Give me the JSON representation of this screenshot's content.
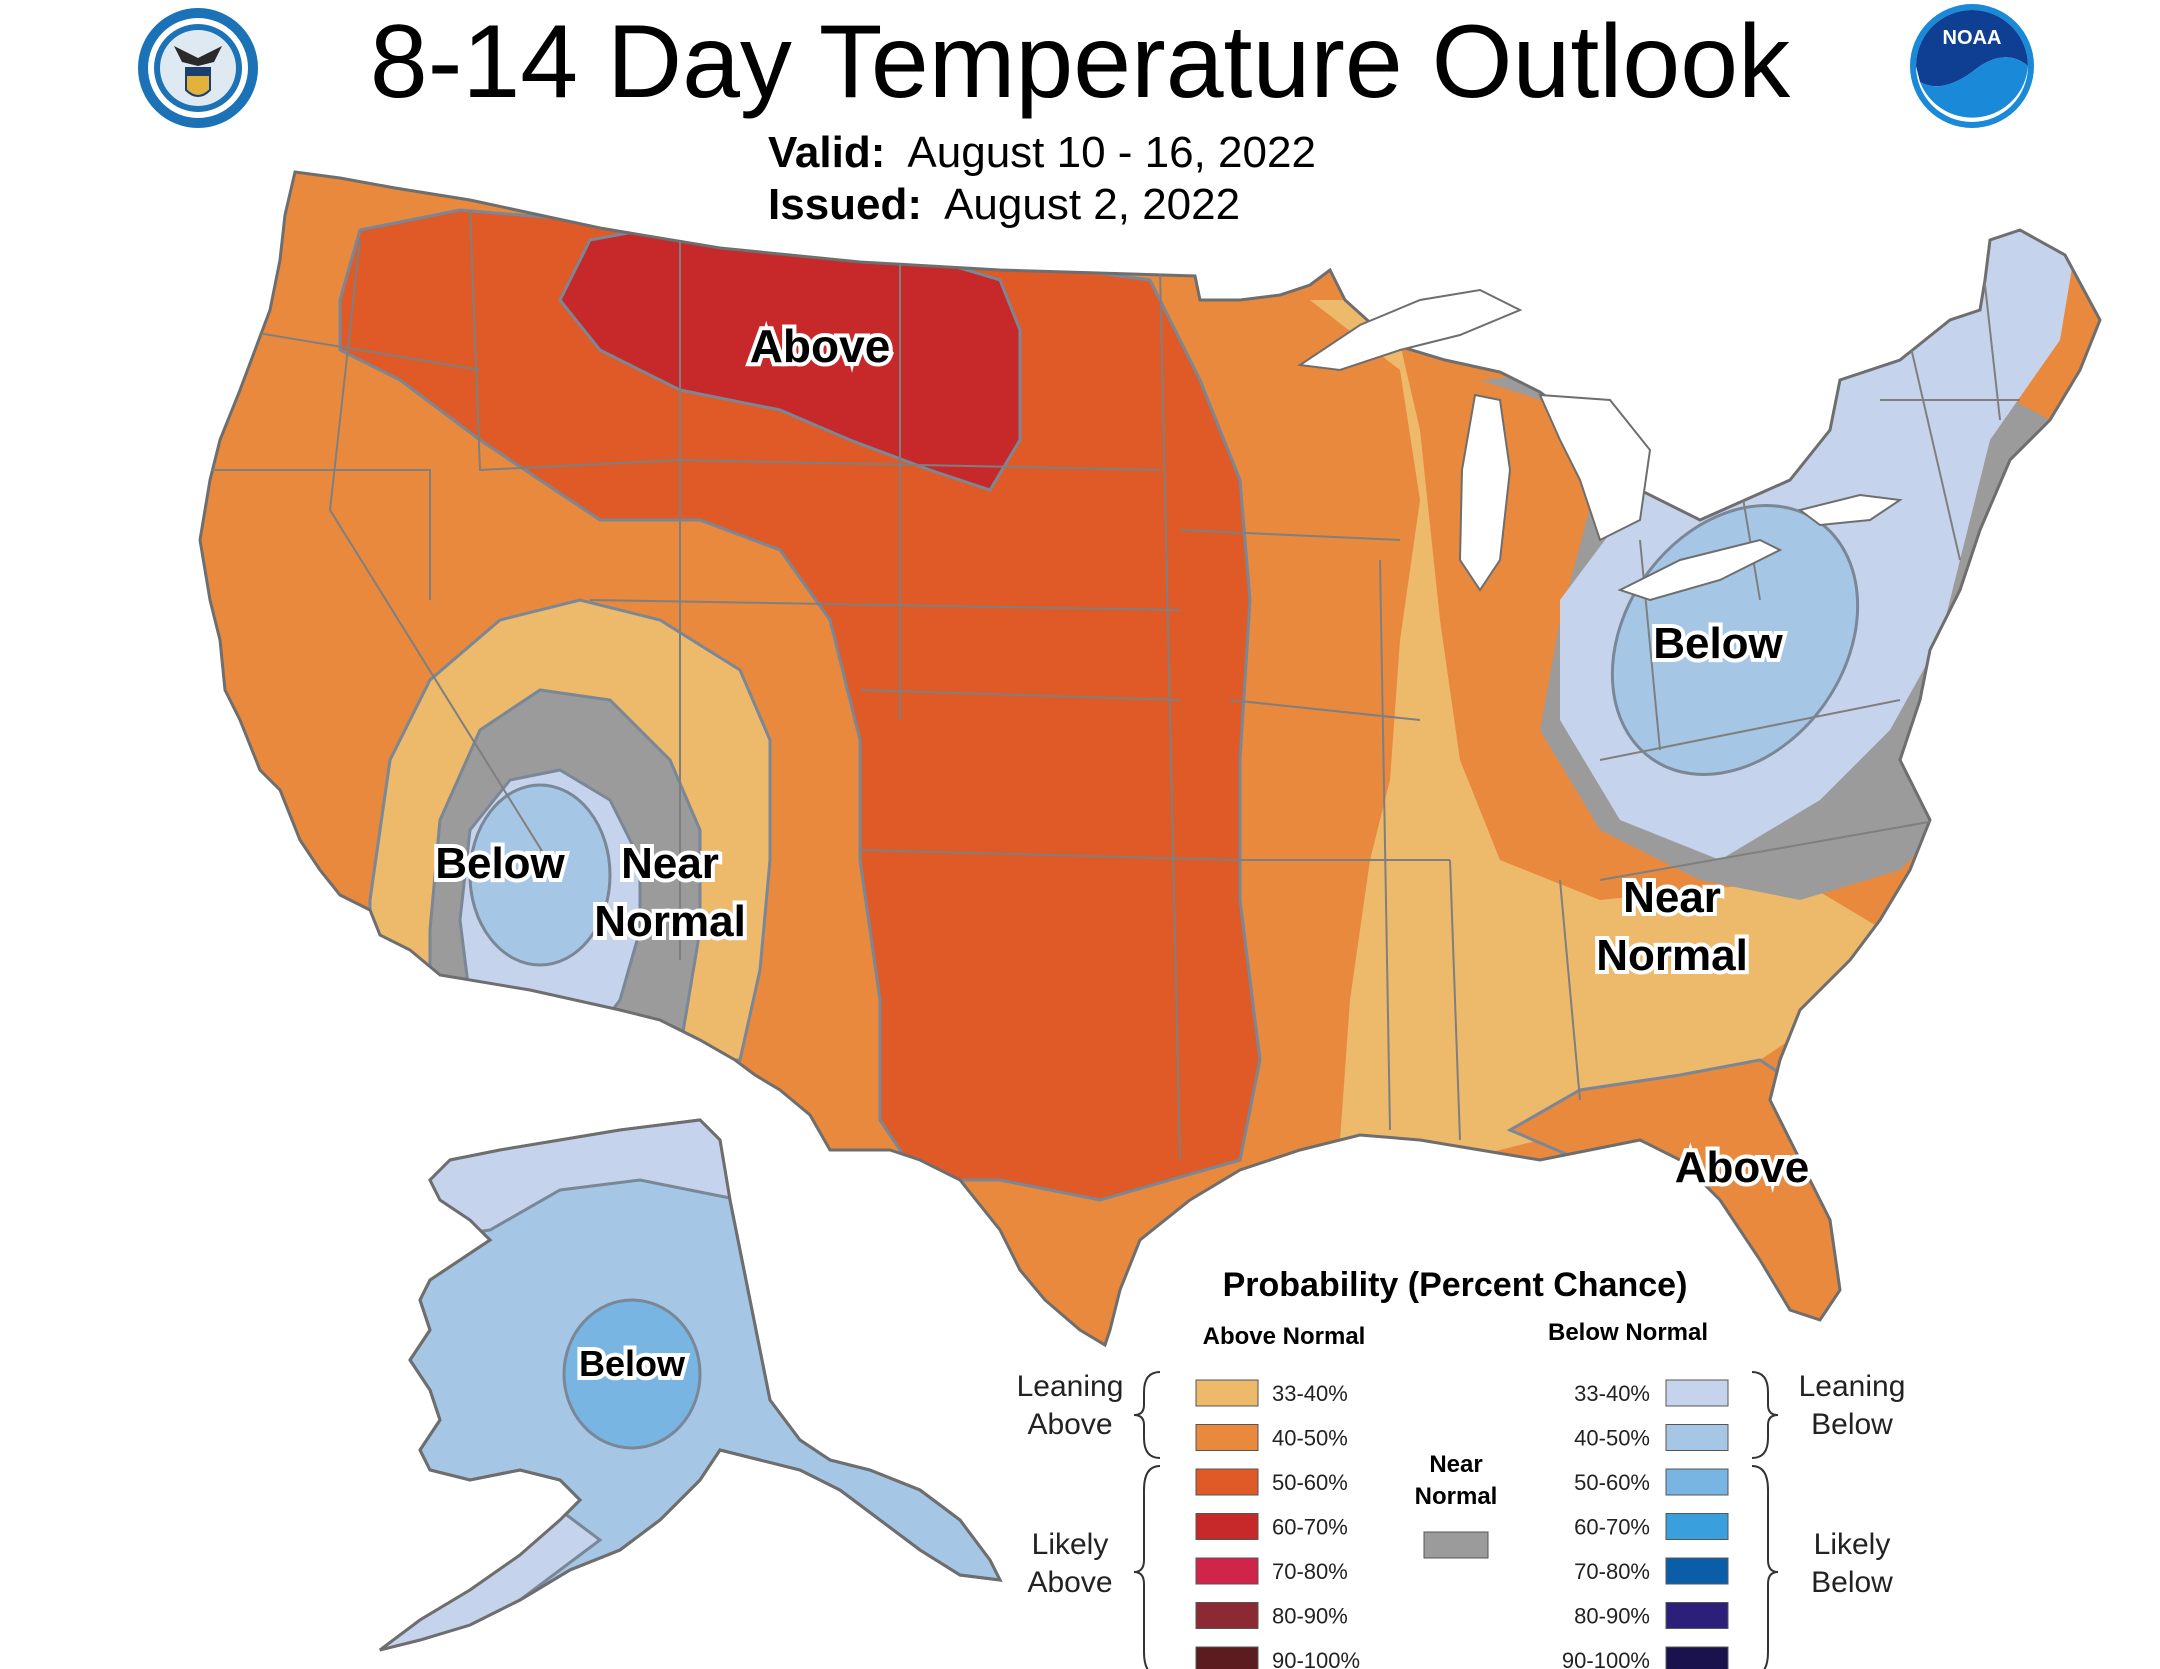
{
  "header": {
    "title": "8-14 Day Temperature Outlook",
    "valid_label": "Valid:",
    "valid_value": "August 10 - 16, 2022",
    "issued_label": "Issued:",
    "issued_value": "August 2, 2022",
    "left_logo": "department-of-commerce-seal",
    "right_logo": "noaa-logo",
    "noaa_text": "NOAA"
  },
  "map": {
    "labels": {
      "north_plains": "Above",
      "southwest_below": "Below",
      "southwest_near_1": "Near",
      "southwest_near_2": "Normal",
      "ohio_valley": "Below",
      "southeast_near_1": "Near",
      "southeast_near_2": "Normal",
      "florida": "Above",
      "alaska": "Below"
    }
  },
  "legend": {
    "title": "Probability (Percent Chance)",
    "above_header": "Above Normal",
    "below_header": "Below Normal",
    "leaning_above": [
      "Leaning",
      "Above"
    ],
    "likely_above": [
      "Likely",
      "Above"
    ],
    "leaning_below": [
      "Leaning",
      "Below"
    ],
    "likely_below": [
      "Likely",
      "Below"
    ],
    "near_normal": [
      "Near",
      "Normal"
    ],
    "near_normal_color": "#9b9b9b",
    "above": [
      {
        "range": "33-40%",
        "color": "#edb96a"
      },
      {
        "range": "40-50%",
        "color": "#e8893e"
      },
      {
        "range": "50-60%",
        "color": "#df5a26"
      },
      {
        "range": "60-70%",
        "color": "#c7282a"
      },
      {
        "range": "70-80%",
        "color": "#d0244a"
      },
      {
        "range": "80-90%",
        "color": "#8c2a34"
      },
      {
        "range": "90-100%",
        "color": "#5c1b1f"
      }
    ],
    "below": [
      {
        "range": "33-40%",
        "color": "#c6d3ec"
      },
      {
        "range": "40-50%",
        "color": "#a6c6e6"
      },
      {
        "range": "50-60%",
        "color": "#78b5e3"
      },
      {
        "range": "60-70%",
        "color": "#3a9fdd"
      },
      {
        "range": "70-80%",
        "color": "#0a5ea7"
      },
      {
        "range": "80-90%",
        "color": "#2c1f7a"
      },
      {
        "range": "90-100%",
        "color": "#1a124d"
      }
    ]
  }
}
